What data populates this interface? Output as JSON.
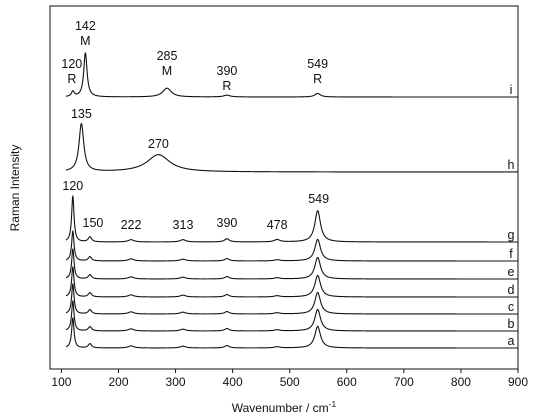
{
  "chart_data": {
    "type": "line",
    "xlabel": "Wavenumber / cm",
    "xlabel_superscript": "-1",
    "ylabel": "Raman Intensity",
    "xlim": [
      80,
      900
    ],
    "xticks": [
      "100",
      "200",
      "300",
      "400",
      "500",
      "600",
      "700",
      "800",
      "900"
    ],
    "y_tick_labels": false,
    "grid": false,
    "series": [
      {
        "name": "i",
        "peaks": [
          {
            "x": 120,
            "height": 0.12,
            "width": 3
          },
          {
            "x": 142,
            "height": 1.0,
            "width": 3.5
          },
          {
            "x": 285,
            "height": 0.2,
            "width": 9
          },
          {
            "x": 390,
            "height": 0.04,
            "width": 7
          },
          {
            "x": 549,
            "height": 0.08,
            "width": 6
          }
        ]
      },
      {
        "name": "h",
        "peaks": [
          {
            "x": 135,
            "height": 1.0,
            "width": 5
          },
          {
            "x": 270,
            "height": 0.36,
            "width": 24
          }
        ]
      },
      {
        "name": "g",
        "peaks": [
          {
            "x": 120,
            "height": 1.0,
            "width": 2.5
          },
          {
            "x": 150,
            "height": 0.11,
            "width": 3.5
          },
          {
            "x": 222,
            "height": 0.05,
            "width": 6
          },
          {
            "x": 313,
            "height": 0.05,
            "width": 6
          },
          {
            "x": 390,
            "height": 0.07,
            "width": 5
          },
          {
            "x": 478,
            "height": 0.05,
            "width": 6
          },
          {
            "x": 549,
            "height": 0.68,
            "width": 6
          }
        ]
      },
      {
        "name": "f",
        "peaks": [
          {
            "x": 120,
            "height": 1.0,
            "width": 2.5
          },
          {
            "x": 150,
            "height": 0.14,
            "width": 3.5
          },
          {
            "x": 222,
            "height": 0.07,
            "width": 6
          },
          {
            "x": 313,
            "height": 0.06,
            "width": 6
          },
          {
            "x": 390,
            "height": 0.08,
            "width": 5
          },
          {
            "x": 478,
            "height": 0.04,
            "width": 6
          },
          {
            "x": 549,
            "height": 0.72,
            "width": 6
          }
        ]
      },
      {
        "name": "e",
        "peaks": [
          {
            "x": 120,
            "height": 1.0,
            "width": 2.5
          },
          {
            "x": 150,
            "height": 0.14,
            "width": 3.5
          },
          {
            "x": 222,
            "height": 0.07,
            "width": 6
          },
          {
            "x": 313,
            "height": 0.06,
            "width": 6
          },
          {
            "x": 390,
            "height": 0.08,
            "width": 5
          },
          {
            "x": 478,
            "height": 0.04,
            "width": 6
          },
          {
            "x": 549,
            "height": 0.72,
            "width": 6
          }
        ]
      },
      {
        "name": "d",
        "peaks": [
          {
            "x": 120,
            "height": 1.0,
            "width": 2.5
          },
          {
            "x": 150,
            "height": 0.14,
            "width": 3.5
          },
          {
            "x": 222,
            "height": 0.07,
            "width": 6
          },
          {
            "x": 313,
            "height": 0.06,
            "width": 6
          },
          {
            "x": 390,
            "height": 0.08,
            "width": 5
          },
          {
            "x": 478,
            "height": 0.04,
            "width": 6
          },
          {
            "x": 549,
            "height": 0.72,
            "width": 6
          }
        ]
      },
      {
        "name": "c",
        "peaks": [
          {
            "x": 120,
            "height": 1.0,
            "width": 2.5
          },
          {
            "x": 150,
            "height": 0.14,
            "width": 3.5
          },
          {
            "x": 222,
            "height": 0.07,
            "width": 6
          },
          {
            "x": 313,
            "height": 0.06,
            "width": 6
          },
          {
            "x": 390,
            "height": 0.08,
            "width": 5
          },
          {
            "x": 478,
            "height": 0.04,
            "width": 6
          },
          {
            "x": 549,
            "height": 0.72,
            "width": 6
          }
        ]
      },
      {
        "name": "b",
        "peaks": [
          {
            "x": 120,
            "height": 1.0,
            "width": 2.5
          },
          {
            "x": 150,
            "height": 0.14,
            "width": 3.5
          },
          {
            "x": 222,
            "height": 0.07,
            "width": 6
          },
          {
            "x": 313,
            "height": 0.06,
            "width": 6
          },
          {
            "x": 390,
            "height": 0.08,
            "width": 5
          },
          {
            "x": 478,
            "height": 0.04,
            "width": 6
          },
          {
            "x": 549,
            "height": 0.72,
            "width": 6
          }
        ]
      },
      {
        "name": "a",
        "peaks": [
          {
            "x": 120,
            "height": 1.0,
            "width": 2.5
          },
          {
            "x": 150,
            "height": 0.14,
            "width": 3.5
          },
          {
            "x": 222,
            "height": 0.07,
            "width": 6
          },
          {
            "x": 313,
            "height": 0.06,
            "width": 6
          },
          {
            "x": 390,
            "height": 0.08,
            "width": 5
          },
          {
            "x": 478,
            "height": 0.04,
            "width": 6
          },
          {
            "x": 549,
            "height": 0.72,
            "width": 6
          }
        ]
      }
    ],
    "annotations": [
      {
        "series": "i",
        "x": 120,
        "lines": [
          "120",
          "R"
        ]
      },
      {
        "series": "i",
        "x": 142,
        "lines": [
          "142",
          "M"
        ]
      },
      {
        "series": "i",
        "x": 285,
        "lines": [
          "285",
          "M"
        ]
      },
      {
        "series": "i",
        "x": 390,
        "lines": [
          "390",
          "R"
        ]
      },
      {
        "series": "i",
        "x": 549,
        "lines": [
          "549",
          "R"
        ]
      },
      {
        "series": "h",
        "x": 135,
        "lines": [
          "135"
        ]
      },
      {
        "series": "h",
        "x": 270,
        "lines": [
          "270"
        ]
      },
      {
        "series": "g",
        "x": 120,
        "lines": [
          "120"
        ]
      },
      {
        "series": "g",
        "x": 150,
        "lines": [
          "150"
        ]
      },
      {
        "series": "g",
        "x": 222,
        "lines": [
          "222"
        ]
      },
      {
        "series": "g",
        "x": 313,
        "lines": [
          "313"
        ]
      },
      {
        "series": "g",
        "x": 390,
        "lines": [
          "390"
        ]
      },
      {
        "series": "g",
        "x": 478,
        "lines": [
          "478"
        ]
      },
      {
        "series": "g",
        "x": 549,
        "lines": [
          "549"
        ]
      }
    ]
  }
}
